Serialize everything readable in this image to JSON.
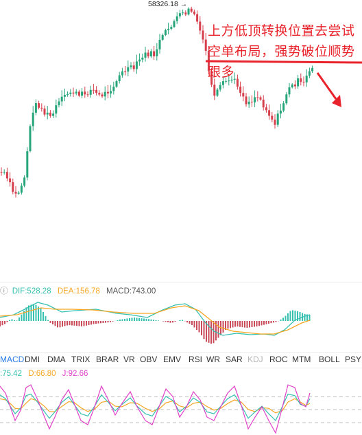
{
  "price_chart": {
    "max_label": "58326.18",
    "max_arrow": "→",
    "annotation": "上方低顶转换位置去尝试空单布局，强势破位顺势跟多",
    "colors": {
      "up": "#27a57a",
      "down": "#d6404c",
      "annotation": "#e8232b"
    }
  },
  "macd": {
    "dif_label": "DIF:528.28",
    "dea_label": "DEA:156.78",
    "macd_label": "MACD:743.00",
    "colors": {
      "dif": "#36c0b0",
      "dea": "#f5a623",
      "macd": "#555555"
    }
  },
  "indicator_tabs": [
    {
      "label": "MACD",
      "active": true
    },
    {
      "label": "DMI"
    },
    {
      "label": "DMA"
    },
    {
      "label": "TRIX"
    },
    {
      "label": "BRAR"
    },
    {
      "label": "VR"
    },
    {
      "label": "OBV"
    },
    {
      "label": "EMV"
    },
    {
      "label": "RSI"
    },
    {
      "label": "WR"
    },
    {
      "label": "SAR"
    },
    {
      "label": "KDJ",
      "dim": true
    },
    {
      "label": "ROC"
    },
    {
      "label": "MTM"
    },
    {
      "label": "BOLL"
    },
    {
      "label": "PSY"
    }
  ],
  "kdj": {
    "k_label": ":75.42",
    "d_label": "D:66.80",
    "j_label": "J:92.66",
    "colors": {
      "k": "#36c0b0",
      "d": "#f5a623",
      "j": "#e040c8"
    }
  }
}
